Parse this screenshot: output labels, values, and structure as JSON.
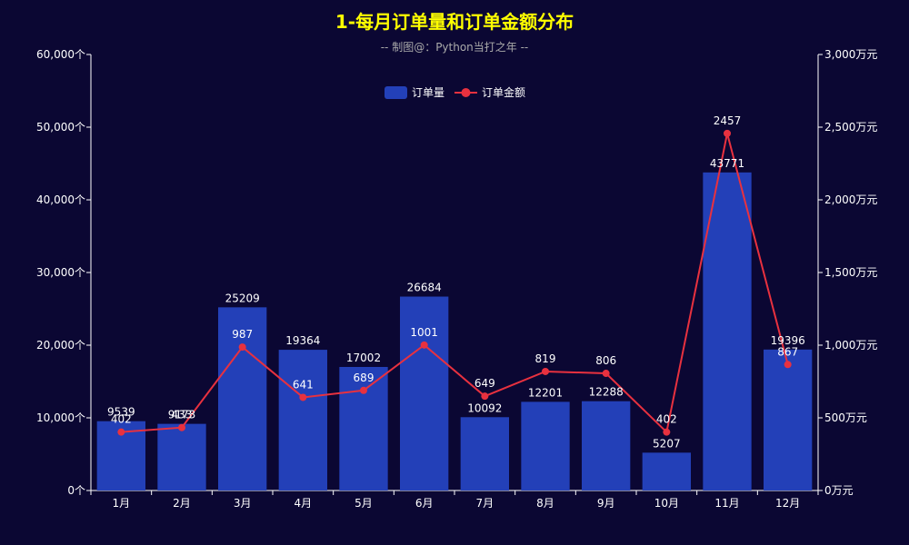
{
  "chart_data": {
    "type": "bar",
    "title": "1-每月订单量和订单金额分布",
    "subtitle": "-- 制图@：Python当打之年 --",
    "categories": [
      "1月",
      "2月",
      "3月",
      "4月",
      "5月",
      "6月",
      "7月",
      "8月",
      "9月",
      "10月",
      "11月",
      "12月"
    ],
    "series": [
      {
        "name": "订单量",
        "type": "bar",
        "axis": "left",
        "color": "#2340b8",
        "values": [
          9539,
          9173,
          25209,
          19364,
          17002,
          26684,
          10092,
          12201,
          12288,
          5207,
          43771,
          19396
        ]
      },
      {
        "name": "订单金额",
        "type": "line",
        "axis": "right",
        "color": "#e8313f",
        "values": [
          402,
          433,
          987,
          641,
          689,
          1001,
          649,
          819,
          806,
          402,
          2457,
          867
        ]
      }
    ],
    "y_left": {
      "min": 0,
      "max": 60000,
      "tick_labels": [
        "0个",
        "10,000个",
        "20,000个",
        "30,000个",
        "40,000个",
        "50,000个",
        "60,000个"
      ]
    },
    "y_right": {
      "min": 0,
      "max": 3000,
      "tick_labels": [
        "0万元",
        "500万元",
        "1,000万元",
        "1,500万元",
        "2,000万元",
        "2,500万元",
        "3,000万元"
      ]
    },
    "legend_position": "top-center",
    "grid": false
  }
}
